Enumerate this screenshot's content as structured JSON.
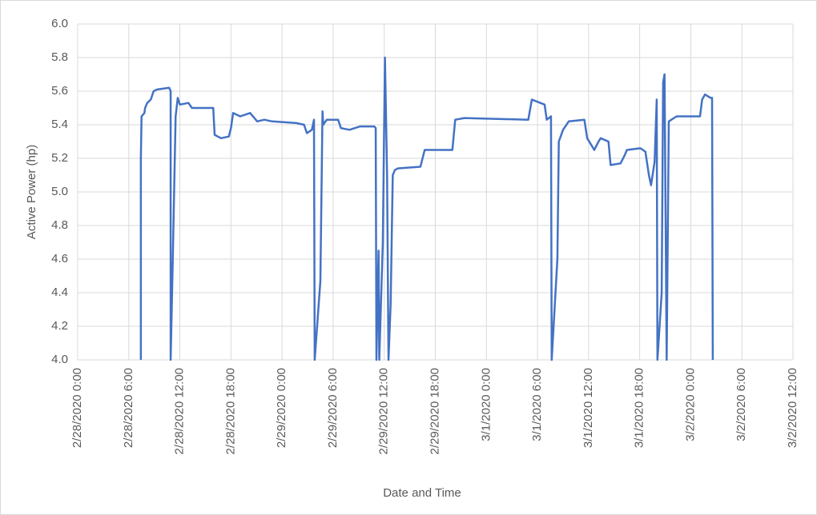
{
  "chart_data": {
    "type": "line",
    "x_label": "Date and Time",
    "y_label": "Active Power (hp)",
    "color": "#4472c4",
    "grid": true,
    "x": [
      "2/28/2020 7:25",
      "2/28/2020 7:25",
      "2/28/2020 7:30",
      "2/28/2020 7:50",
      "2/28/2020 7:55",
      "2/28/2020 8:10",
      "2/28/2020 8:35",
      "2/28/2020 8:55",
      "2/28/2020 9:20",
      "2/28/2020 10:45",
      "2/28/2020 10:55",
      "2/28/2020 10:55",
      "2/28/2020 11:10",
      "2/28/2020 11:30",
      "2/28/2020 11:45",
      "2/28/2020 12:00",
      "2/28/2020 13:00",
      "2/28/2020 13:25",
      "2/28/2020 15:55",
      "2/28/2020 16:05",
      "2/28/2020 16:50",
      "2/28/2020 17:45",
      "2/28/2020 18:00",
      "2/28/2020 18:15",
      "2/28/2020 19:05",
      "2/28/2020 20:15",
      "2/28/2020 21:05",
      "2/28/2020 21:55",
      "2/28/2020 22:50",
      "2/29/2020 1:40",
      "2/29/2020 2:35",
      "2/29/2020 2:55",
      "2/29/2020 3:30",
      "2/29/2020 3:45",
      "2/29/2020 3:50",
      "2/29/2020 4:30",
      "2/29/2020 4:45",
      "2/29/2020 4:50",
      "2/29/2020 5:15",
      "2/29/2020 6:35",
      "2/29/2020 6:55",
      "2/29/2020 7:55",
      "2/29/2020 9:10",
      "2/29/2020 10:50",
      "2/29/2020 11:00",
      "2/29/2020 11:05",
      "2/29/2020 11:20",
      "2/29/2020 11:25",
      "2/29/2020 11:50",
      "2/29/2020 12:05",
      "2/29/2020 12:20",
      "2/29/2020 12:30",
      "2/29/2020 12:45",
      "2/29/2020 13:00",
      "2/29/2020 13:15",
      "2/29/2020 13:35",
      "2/29/2020 16:15",
      "2/29/2020 16:45",
      "2/29/2020 20:00",
      "2/29/2020 20:20",
      "2/29/2020 21:25",
      "3/1/2020 4:55",
      "3/1/2020 5:20",
      "3/1/2020 6:50",
      "3/1/2020 7:05",
      "3/1/2020 7:35",
      "3/1/2020 7:40",
      "3/1/2020 8:20",
      "3/1/2020 8:30",
      "3/1/2020 9:00",
      "3/1/2020 9:40",
      "3/1/2020 11:30",
      "3/1/2020 11:50",
      "3/1/2020 12:40",
      "3/1/2020 13:10",
      "3/1/2020 13:25",
      "3/1/2020 14:20",
      "3/1/2020 14:35",
      "3/1/2020 15:45",
      "3/1/2020 16:15",
      "3/1/2020 16:30",
      "3/1/2020 18:05",
      "3/1/2020 18:40",
      "3/1/2020 19:05",
      "3/1/2020 19:20",
      "3/1/2020 19:45",
      "3/1/2020 20:00",
      "3/1/2020 20:05",
      "3/1/2020 20:35",
      "3/1/2020 20:45",
      "3/1/2020 20:55",
      "3/1/2020 21:10",
      "3/1/2020 21:25",
      "3/1/2020 22:20",
      "3/2/2020 1:05",
      "3/2/2020 1:20",
      "3/2/2020 1:40",
      "3/2/2020 2:20",
      "3/2/2020 2:30",
      "3/2/2020 2:35"
    ],
    "values": [
      4.0,
      5.2,
      5.45,
      5.47,
      5.5,
      5.53,
      5.55,
      5.6,
      5.61,
      5.62,
      5.6,
      4.0,
      4.6,
      5.45,
      5.56,
      5.52,
      5.53,
      5.5,
      5.5,
      5.34,
      5.32,
      5.33,
      5.38,
      5.47,
      5.45,
      5.47,
      5.42,
      5.43,
      5.42,
      5.41,
      5.4,
      5.35,
      5.37,
      5.43,
      4.0,
      4.47,
      5.48,
      5.4,
      5.43,
      5.43,
      5.38,
      5.37,
      5.39,
      5.39,
      5.38,
      4.0,
      4.65,
      4.0,
      4.7,
      5.8,
      5.1,
      4.0,
      4.33,
      5.1,
      5.13,
      5.14,
      5.15,
      5.25,
      5.25,
      5.43,
      5.44,
      5.43,
      5.55,
      5.52,
      5.43,
      5.45,
      4.0,
      4.6,
      5.3,
      5.37,
      5.42,
      5.43,
      5.32,
      5.25,
      5.3,
      5.32,
      5.3,
      5.16,
      5.17,
      5.22,
      5.25,
      5.26,
      5.24,
      5.1,
      5.04,
      5.18,
      5.55,
      4.0,
      4.4,
      5.65,
      5.7,
      4.0,
      5.42,
      5.45,
      5.45,
      5.55,
      5.58,
      5.56,
      5.56,
      4.0
    ],
    "xlim": [
      "2/28/2020 0:00",
      "3/2/2020 12:00"
    ],
    "xticks": [
      "2/28/2020 0:00",
      "2/28/2020 6:00",
      "2/28/2020 12:00",
      "2/28/2020 18:00",
      "2/29/2020 0:00",
      "2/29/2020 6:00",
      "2/29/2020 12:00",
      "2/29/2020 18:00",
      "3/1/2020 0:00",
      "3/1/2020 6:00",
      "3/1/2020 12:00",
      "3/1/2020 18:00",
      "3/2/2020 0:00",
      "3/2/2020 6:00",
      "3/2/2020 12:00"
    ],
    "ylim": [
      4.0,
      6.0
    ],
    "yticks": [
      {
        "value": 4,
        "label": "4.0"
      },
      {
        "value": 4.2,
        "label": "4.2"
      },
      {
        "value": 4.4,
        "label": "4.4"
      },
      {
        "value": 4.6,
        "label": "4.6"
      },
      {
        "value": 4.8,
        "label": "4.8"
      },
      {
        "value": 5,
        "label": "5.0"
      },
      {
        "value": 5.2,
        "label": "5.2"
      },
      {
        "value": 5.4,
        "label": "5.4"
      },
      {
        "value": 5.6,
        "label": "5.6"
      },
      {
        "value": 5.8,
        "label": "5.8"
      },
      {
        "value": 6,
        "label": "6.0"
      }
    ]
  }
}
